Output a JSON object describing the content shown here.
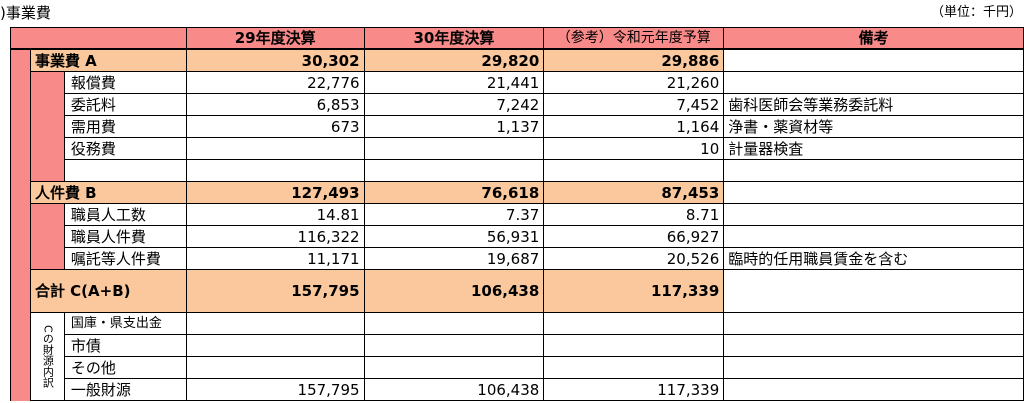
{
  "caption": {
    "title": ")事業費",
    "unit": "（単位：千円）"
  },
  "headers": [
    "29年度決算",
    "30年度決算",
    "（参考）令和元年度予算",
    "備考"
  ],
  "rows": {
    "business_total": {
      "label": "事業費 A",
      "v29": "30,302",
      "v30": "29,820",
      "v01": "29,886",
      "note": ""
    },
    "compensation": {
      "label": "報償費",
      "v29": "22,776",
      "v30": "21,441",
      "v01": "21,260",
      "note": ""
    },
    "commission": {
      "label": "委託料",
      "v29": "6,853",
      "v30": "7,242",
      "v01": "7,452",
      "note": "歯科医師会等業務委託料"
    },
    "supplies": {
      "label": "需用費",
      "v29": "673",
      "v30": "1,137",
      "v01": "1,164",
      "note": "浄書・薬資材等"
    },
    "services": {
      "label": "役務費",
      "v29": "",
      "v30": "",
      "v01": "10",
      "note": "計量器検査"
    },
    "blank": {
      "label": "",
      "v29": "",
      "v30": "",
      "v01": "",
      "note": ""
    },
    "personnel_total": {
      "label": "人件費 B",
      "v29": "127,493",
      "v30": "76,618",
      "v01": "87,453",
      "note": ""
    },
    "staff_count": {
      "label": "職員人工数",
      "v29": "14.81",
      "v30": "7.37",
      "v01": "8.71",
      "note": ""
    },
    "staff_cost": {
      "label": "職員人件費",
      "v29": "116,322",
      "v30": "56,931",
      "v01": "66,927",
      "note": ""
    },
    "contract_cost": {
      "label": "嘱託等人件費",
      "v29": "11,171",
      "v30": "19,687",
      "v01": "20,526",
      "note": "臨時的任用職員賃金を含む"
    },
    "grand_total": {
      "label": "合計 C(A+B)",
      "v29": "157,795",
      "v30": "106,438",
      "v01": "117,339",
      "note": ""
    },
    "funding_side_label": "Cの財源内訳",
    "national_pref": {
      "label": "国庫・県支出金",
      "v29": "",
      "v30": "",
      "v01": "",
      "note": ""
    },
    "city_bond": {
      "label": "市債",
      "v29": "",
      "v30": "",
      "v01": "",
      "note": ""
    },
    "other": {
      "label": "その他",
      "v29": "",
      "v30": "",
      "v01": "",
      "note": ""
    },
    "general": {
      "label": "一般財源",
      "v29": "157,795",
      "v30": "106,438",
      "v01": "117,339",
      "note": ""
    }
  },
  "colors": {
    "header": "#f98a8a",
    "section": "#fac89c"
  }
}
